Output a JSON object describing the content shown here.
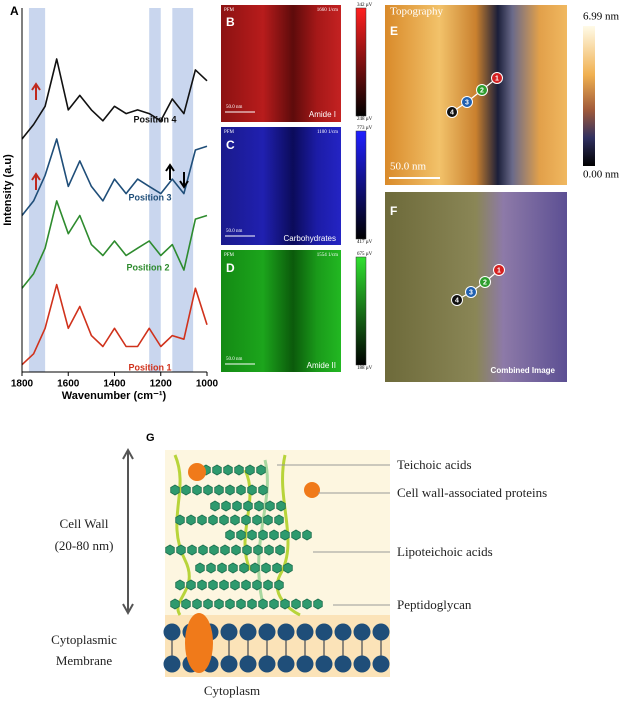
{
  "chart_data": {
    "type": "line",
    "panel": "A",
    "x_label": "Wavenumber (cm⁻¹)",
    "y_label": "Intensity (a.u)",
    "x": [
      1800,
      1750,
      1700,
      1650,
      1600,
      1550,
      1500,
      1450,
      1400,
      1350,
      1300,
      1250,
      1200,
      1150,
      1100,
      1050,
      1000
    ],
    "xlim": [
      1800,
      1000
    ],
    "xticks": [
      1800,
      1600,
      1400,
      1200,
      1000
    ],
    "ylim": [
      0,
      100
    ],
    "highlight_bands": [
      [
        1770,
        1700
      ],
      [
        1250,
        1200
      ],
      [
        1150,
        1060
      ]
    ],
    "band_color": "#c9d6ee",
    "series": [
      {
        "name": "Position 1",
        "color": "#d0321c",
        "values": [
          2,
          5,
          12,
          24,
          12,
          18,
          10,
          7,
          12,
          7,
          7,
          12,
          7,
          10,
          9,
          23,
          13
        ]
      },
      {
        "name": "Position 2",
        "color": "#2e8b2e",
        "values": [
          23,
          27,
          34,
          47,
          38,
          43,
          35,
          32,
          36,
          32,
          34,
          36,
          32,
          35,
          28,
          42,
          43
        ]
      },
      {
        "name": "Position 3",
        "color": "#1f4e79",
        "values": [
          43,
          47,
          54,
          64,
          51,
          58,
          51,
          47,
          53,
          49,
          53,
          51,
          49,
          53,
          49,
          61,
          62
        ]
      },
      {
        "name": "Position 4",
        "color": "#111111",
        "values": [
          64,
          68,
          73,
          86,
          72,
          76,
          72,
          69,
          73,
          71,
          72,
          71,
          69,
          75,
          71,
          83,
          80
        ]
      }
    ]
  },
  "panels": {
    "B": {
      "letter": "B",
      "header": "PFM",
      "wavenumber": "1660 1/cm",
      "scale_bar": "50.0 nm",
      "label": "Amide I",
      "colorbar_max": "342 µV",
      "colorbar_min": "248 µV"
    },
    "C": {
      "letter": "C",
      "header": "PFM",
      "wavenumber": "1100 1/cm",
      "scale_bar": "50.0 nm",
      "label": "Carbohydrates",
      "colorbar_max": "773 µV",
      "colorbar_min": "417 µV"
    },
    "D": {
      "letter": "D",
      "header": "PFM",
      "wavenumber": "1554 1/cm",
      "scale_bar": "50.0 nm",
      "label": "Amide II",
      "colorbar_max": "675 µV",
      "colorbar_min": "188 µV"
    },
    "E": {
      "letter": "E",
      "label": "Topography",
      "scale_bar": "50.0 nm",
      "colorbar_max": "6.99 nm",
      "colorbar_min": "0.00 nm"
    },
    "F": {
      "letter": "F",
      "label": "Combined Image"
    },
    "markers": [
      "1",
      "2",
      "3",
      "4"
    ]
  },
  "diagram": {
    "letter": "G",
    "cell_wall": [
      "Cell Wall",
      "(20-80 nm)"
    ],
    "membrane": [
      "Cytoplasmic",
      "Membrane"
    ],
    "cytoplasm": "Cytoplasm",
    "labels": [
      "Teichoic acids",
      "Cell wall-associated proteins",
      "Lipoteichoic acids",
      "Peptidoglycan"
    ]
  }
}
